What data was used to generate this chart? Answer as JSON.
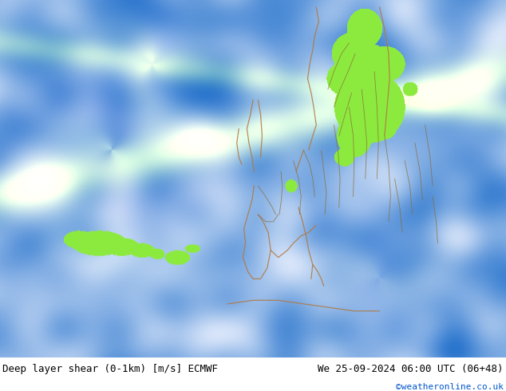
{
  "title_left": "Deep layer shear (0-1km) [m/s] ECMWF",
  "title_right": "We 25-09-2024 06:00 UTC (06+48)",
  "copyright": "©weatheronline.co.uk",
  "figure_width": 6.34,
  "figure_height": 4.9,
  "dpi": 100,
  "text_color_main": "#000000",
  "text_color_copy": "#0055cc",
  "font_size_main": 9,
  "font_size_copy": 8
}
